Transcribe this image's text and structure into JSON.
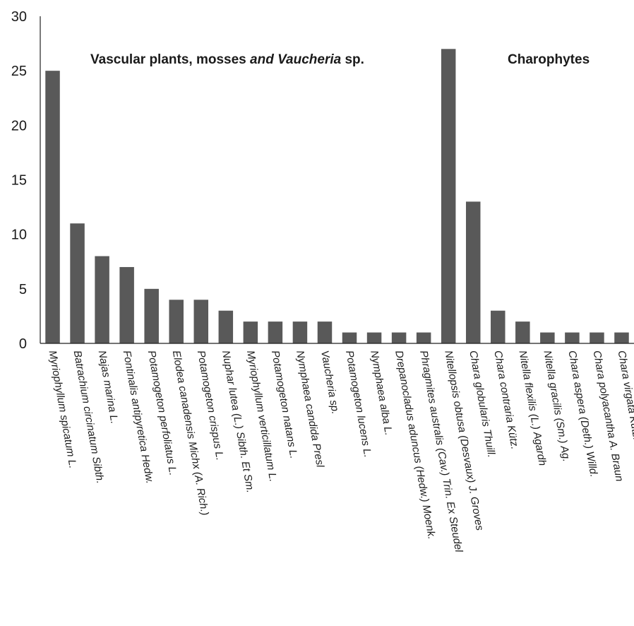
{
  "chart_data": {
    "type": "bar",
    "title": "",
    "xlabel": "",
    "ylabel": "",
    "ylim": [
      0,
      30
    ],
    "yticks": [
      0,
      5,
      10,
      15,
      20,
      25,
      30
    ],
    "grid": false,
    "legend": "none",
    "bar_color": "#595959",
    "categories": [
      "Myriophyllum spicatum L.",
      "Batrachium circinatum Sibth.",
      "Najas marina L.",
      "Fontinalis antipyretica Hedw.",
      "Potamogeton perfoliatus L.",
      "Elodea canadensis Michx (A. Rich.)",
      "Potamogeton crispus L.",
      "Nuphar lutea (L.) Sibth. Et Sm.",
      "Myriophyllum verticillatum L.",
      "Potamogeton natans L.",
      "Nymphaea candida Presl",
      "Vaucheria sp.",
      "Potamogeton lucens L.",
      "Nymphaea alba L.",
      "Drepanocladus aduncus (Hedw.) Moenk.",
      "Phragmites australis (Cav.) Trin. Ex Steudel",
      "Nitellopsis obtusa (Desvaux) J. Groves",
      "Chara globularis Thuill.",
      "Chara contraria Kütz.",
      "Nitella flexilis (L.) Agardh",
      "Nitella gracilis (Sm.) Ag.",
      "Chara aspera (Deth.) Willd.",
      "Chara polyacantha A. Braun",
      "Chara virgata Kütz."
    ],
    "values": [
      25,
      11,
      8,
      7,
      5,
      4,
      4,
      3,
      2,
      2,
      2,
      2,
      1,
      1,
      1,
      1,
      27,
      13,
      3,
      2,
      1,
      1,
      1,
      1
    ],
    "groups": [
      {
        "label_parts": [
          "Vascular plants, mosses ",
          "and Vaucheria",
          " sp."
        ],
        "from": 0,
        "to": 15
      },
      {
        "label_parts": [
          "Charophytes"
        ],
        "from": 16,
        "to": 23
      }
    ]
  }
}
